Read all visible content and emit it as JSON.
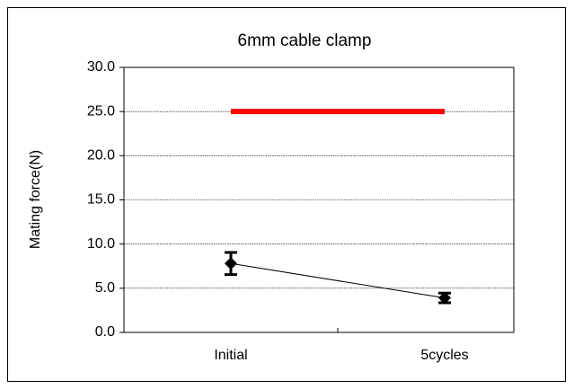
{
  "chart_data": {
    "type": "line",
    "title": "6mm cable clamp",
    "y_label": "Mating force(N)",
    "categories": [
      "Initial",
      "5cycles"
    ],
    "series": [
      {
        "color": "#000000",
        "values": [
          7.8,
          3.9
        ],
        "errors": [
          1.25,
          0.55
        ],
        "marker": "diamond"
      },
      {
        "color": "#ff0000",
        "values": [
          25,
          25
        ]
      }
    ],
    "ylim": [
      0,
      30
    ],
    "yticks": [
      {
        "value": 0,
        "label": "0.0"
      },
      {
        "value": 5,
        "label": "5.0"
      },
      {
        "value": 10,
        "label": "10.0"
      },
      {
        "value": 15,
        "label": "15.0"
      },
      {
        "value": 20,
        "label": "20.0"
      },
      {
        "value": 25,
        "label": "25.0"
      },
      {
        "value": 30,
        "label": "30.0"
      }
    ],
    "grid": true
  }
}
